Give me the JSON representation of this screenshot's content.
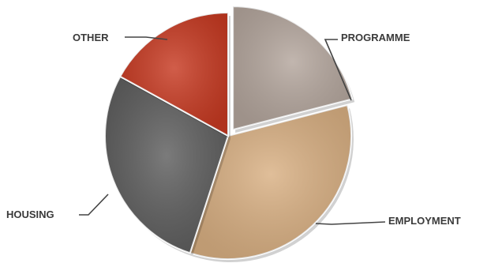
{
  "chart_data": {
    "type": "pie",
    "title": "",
    "slices": [
      {
        "label": "PROGRAMME",
        "value": 21,
        "color": "#b4a69d",
        "exploded": true
      },
      {
        "label": "EMPLOYMENT",
        "value": 34,
        "color": "#d9b083"
      },
      {
        "label": "HOUSING",
        "value": 28,
        "color": "#5e5e5e"
      },
      {
        "label": "OTHER",
        "value": 17,
        "color": "#c73a22"
      }
    ],
    "legend": "none",
    "label_style": "leader-lines"
  }
}
